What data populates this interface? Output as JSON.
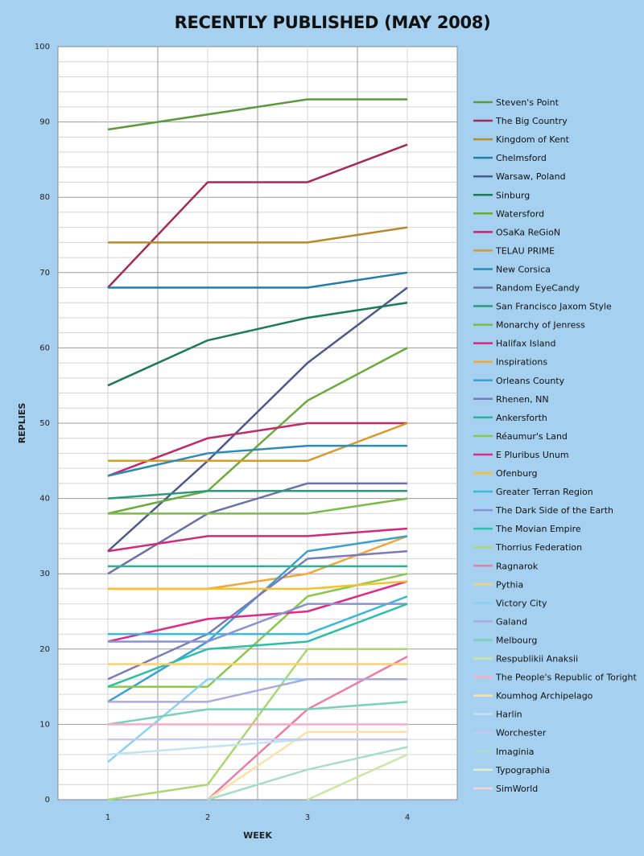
{
  "chart_data": {
    "type": "line",
    "title": "RECENTLY PUBLISHED (MAY 2008)",
    "xlabel": "WEEK",
    "ylabel": "REPLIES",
    "x": [
      1,
      2,
      3,
      4
    ],
    "ylim": [
      0,
      100
    ],
    "yticks": [
      0,
      10,
      20,
      30,
      40,
      50,
      60,
      70,
      80,
      90,
      100
    ],
    "grid": true,
    "legend_position": "right",
    "series": [
      {
        "name": "Steven's Point",
        "color": "#5a9a3a",
        "values": [
          89,
          91,
          93,
          93
        ]
      },
      {
        "name": "The Big Country",
        "color": "#a52a5a",
        "values": [
          68,
          82,
          82,
          87
        ]
      },
      {
        "name": "Kingdom of Kent",
        "color": "#b88a2a",
        "values": [
          74,
          74,
          74,
          76
        ]
      },
      {
        "name": "Chelmsford",
        "color": "#1f7fa8",
        "values": [
          68,
          68,
          68,
          70
        ]
      },
      {
        "name": "Warsaw, Poland",
        "color": "#4a5a8a",
        "values": [
          33,
          45,
          58,
          68
        ]
      },
      {
        "name": "Sinburg",
        "color": "#1a7a5a",
        "values": [
          55,
          61,
          64,
          66
        ]
      },
      {
        "name": "Watersford",
        "color": "#6aaa3a",
        "values": [
          38,
          41,
          53,
          60
        ]
      },
      {
        "name": "OSaKa ReGioN",
        "color": "#c02a6a",
        "values": [
          43,
          48,
          50,
          50
        ]
      },
      {
        "name": "TELAU PRIME",
        "color": "#d89a2a",
        "values": [
          45,
          45,
          45,
          50
        ]
      },
      {
        "name": "New Corsica",
        "color": "#2a8ab8",
        "values": [
          43,
          46,
          47,
          47
        ]
      },
      {
        "name": "Random EyeCandy",
        "color": "#6a72a8",
        "values": [
          30,
          38,
          42,
          42
        ]
      },
      {
        "name": "San Francisco Jaxom Style",
        "color": "#2a9a7a",
        "values": [
          40,
          41,
          41,
          41
        ]
      },
      {
        "name": "Monarchy of Jenress",
        "color": "#7aba4a",
        "values": [
          38,
          38,
          38,
          40
        ]
      },
      {
        "name": "Halifax Island",
        "color": "#d02a7a",
        "values": [
          33,
          35,
          35,
          36
        ]
      },
      {
        "name": "Inspirations",
        "color": "#f0a83a",
        "values": [
          28,
          28,
          30,
          35
        ]
      },
      {
        "name": "Orleans County",
        "color": "#3aa0d0",
        "values": [
          13,
          21,
          33,
          35
        ]
      },
      {
        "name": "Rhenen, NN",
        "color": "#7a7ab8",
        "values": [
          16,
          22,
          32,
          33
        ]
      },
      {
        "name": "Ankersforth",
        "color": "#2ab098",
        "values": [
          31,
          31,
          31,
          31
        ]
      },
      {
        "name": "Réaumur's Land",
        "color": "#8ac84a",
        "values": [
          15,
          15,
          27,
          30
        ]
      },
      {
        "name": "E Pluribus Unum",
        "color": "#e02a8a",
        "values": [
          21,
          24,
          25,
          29
        ]
      },
      {
        "name": "Ofenburg",
        "color": "#f8c02a",
        "values": [
          28,
          28,
          28,
          29
        ]
      },
      {
        "name": "Greater Terran Region",
        "color": "#3ab8e0",
        "values": [
          22,
          22,
          22,
          27
        ]
      },
      {
        "name": "The Dark Side of the Earth",
        "color": "#8a92d0",
        "values": [
          21,
          21,
          26,
          26
        ]
      },
      {
        "name": "The Movian Empire",
        "color": "#2ac0a8",
        "values": [
          15,
          20,
          21,
          26
        ]
      },
      {
        "name": "Thorrius Federation",
        "color": "#a8d870",
        "values": [
          0,
          2,
          20,
          20
        ]
      },
      {
        "name": "Ragnarok",
        "color": "#ee7aa8",
        "values": [
          null,
          0,
          12,
          19
        ]
      },
      {
        "name": "Pythia",
        "color": "#fad070",
        "values": [
          18,
          18,
          18,
          18
        ]
      },
      {
        "name": "Victory City",
        "color": "#8ad0f0",
        "values": [
          5,
          16,
          16,
          16
        ]
      },
      {
        "name": "Galand",
        "color": "#aaaae0",
        "values": [
          13,
          13,
          16,
          16
        ]
      },
      {
        "name": "Melbourg",
        "color": "#7ad0b8",
        "values": [
          10,
          12,
          12,
          13
        ]
      },
      {
        "name": "Respublikii Anaksii",
        "color": "#c8e8a0",
        "values": [
          null,
          null,
          0,
          6
        ]
      },
      {
        "name": "The People's Republic of Toright",
        "color": "#f8aac8",
        "values": [
          10,
          10,
          10,
          10
        ]
      },
      {
        "name": "Koumhog Archipelago",
        "color": "#fce0a8",
        "values": [
          null,
          0,
          9,
          9
        ]
      },
      {
        "name": "Harlin",
        "color": "#c0e4f4",
        "values": [
          6,
          7,
          8,
          8
        ]
      },
      {
        "name": "Worchester",
        "color": "#c8c8ec",
        "values": [
          8,
          8,
          8,
          8
        ]
      },
      {
        "name": "Imaginia",
        "color": "#a8dccc",
        "values": [
          null,
          0,
          4,
          7
        ]
      },
      {
        "name": "Typographia",
        "color": "#e0f0c8",
        "values": [
          null,
          null,
          null,
          null
        ]
      },
      {
        "name": "SimWorld",
        "color": "#fcd0e0",
        "values": [
          null,
          null,
          null,
          0
        ]
      }
    ]
  }
}
